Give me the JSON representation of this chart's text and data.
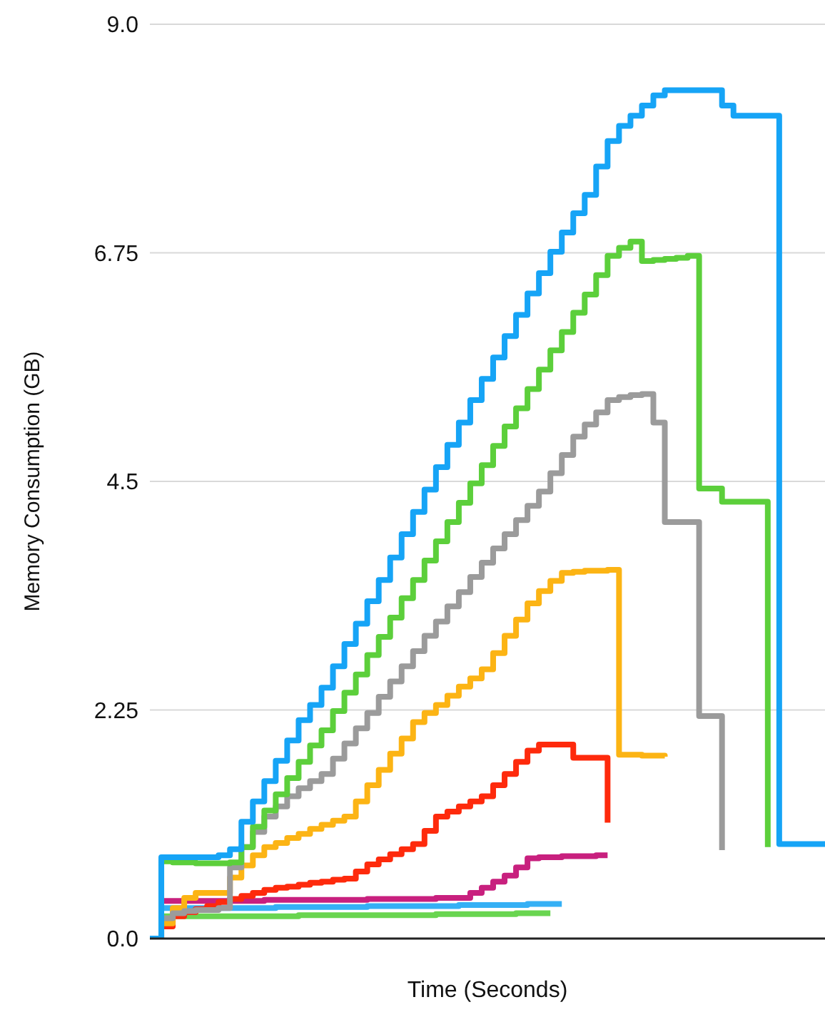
{
  "chart_data": {
    "type": "step",
    "xlabel": "Time (Seconds)",
    "ylabel": "Memory Consumption (GB)",
    "categories": [
      null,
      null,
      null,
      null,
      null,
      null,
      null,
      null,
      null,
      null,
      null,
      null,
      null,
      null,
      null,
      null,
      null,
      null,
      null,
      null,
      null,
      null,
      null,
      null,
      null,
      null,
      null,
      null,
      null,
      null,
      null,
      null,
      null,
      null,
      null,
      null,
      null,
      null,
      null,
      null,
      null,
      null,
      null,
      null,
      null,
      null,
      null,
      null,
      null,
      null,
      null,
      null,
      null,
      null,
      null,
      null,
      null,
      null,
      null,
      null
    ],
    "ylim": [
      0,
      9
    ],
    "yticks": [
      {
        "value": 0,
        "label": "0.0"
      },
      2.25,
      4.5,
      6.75,
      {
        "value": 9,
        "label": "9.0"
      }
    ],
    "grid": "y",
    "marker": "none",
    "line_style": "solid",
    "tick_labels": "y",
    "series": [
      {
        "color": "#69d550",
        "values": [
          null,
          0.22,
          0.22,
          0.22,
          0.22,
          0.22,
          0.22,
          0.22,
          0.22,
          0.22,
          0.22,
          0.22,
          0.22,
          0.23,
          0.23,
          0.23,
          0.23,
          0.23,
          0.23,
          0.23,
          0.23,
          0.23,
          0.23,
          0.23,
          0.23,
          0.24,
          0.24,
          0.24,
          0.24,
          0.24,
          0.24,
          0.24,
          0.25,
          0.25,
          0.25,
          0.25,
          null,
          null,
          null,
          null,
          null,
          null,
          null,
          null,
          null,
          null,
          null,
          null,
          null,
          null,
          null,
          null,
          null,
          null,
          null,
          null,
          null,
          null,
          null,
          null
        ]
      },
      {
        "color": "#35b0f5",
        "values": [
          null,
          0.3,
          0.3,
          0.3,
          0.3,
          0.3,
          0.3,
          0.3,
          0.3,
          0.3,
          0.3,
          0.31,
          0.31,
          0.31,
          0.31,
          0.31,
          0.31,
          0.31,
          0.31,
          0.32,
          0.32,
          0.32,
          0.32,
          0.32,
          0.32,
          0.32,
          0.32,
          0.33,
          0.33,
          0.33,
          0.33,
          0.33,
          0.33,
          0.34,
          0.34,
          0.34,
          0.34,
          null,
          null,
          null,
          null,
          null,
          null,
          null,
          null,
          null,
          null,
          null,
          null,
          null,
          null,
          null,
          null,
          null,
          null,
          null,
          null,
          null,
          null,
          null
        ]
      },
      {
        "color": "#c8207e",
        "values": [
          null,
          0.37,
          0.37,
          0.37,
          0.37,
          0.37,
          0.37,
          0.37,
          0.37,
          0.37,
          0.38,
          0.38,
          0.38,
          0.38,
          0.38,
          0.38,
          0.38,
          0.38,
          0.38,
          0.39,
          0.39,
          0.39,
          0.39,
          0.39,
          0.39,
          0.4,
          0.4,
          0.4,
          0.45,
          0.5,
          0.56,
          0.62,
          0.7,
          0.79,
          0.8,
          0.8,
          0.81,
          0.81,
          0.81,
          0.82,
          0.82,
          null,
          null,
          null,
          null,
          null,
          null,
          null,
          null,
          null,
          null,
          null,
          null,
          null,
          null,
          null,
          null,
          null,
          null,
          null
        ]
      },
      {
        "color": "#fe2a0c",
        "values": [
          0,
          0.12,
          0.22,
          0.26,
          0.29,
          0.32,
          0.36,
          0.39,
          0.42,
          0.45,
          0.48,
          0.5,
          0.51,
          0.53,
          0.55,
          0.56,
          0.58,
          0.59,
          0.66,
          0.73,
          0.78,
          0.83,
          0.88,
          0.93,
          1.06,
          1.2,
          1.25,
          1.3,
          1.35,
          1.4,
          1.51,
          1.62,
          1.74,
          1.85,
          1.91,
          1.91,
          1.91,
          1.78,
          1.78,
          1.78,
          1.14,
          null,
          null,
          null,
          null,
          null,
          null,
          null,
          null,
          null,
          null,
          null,
          null,
          null,
          null,
          null,
          null,
          null,
          null,
          null
        ]
      },
      {
        "color": "#fcb414",
        "values": [
          0,
          0.15,
          0.3,
          0.4,
          0.45,
          0.45,
          0.45,
          0.6,
          0.72,
          0.82,
          0.9,
          0.94,
          0.99,
          1.03,
          1.08,
          1.12,
          1.16,
          1.2,
          1.35,
          1.51,
          1.66,
          1.82,
          1.97,
          2.13,
          2.22,
          2.3,
          2.39,
          2.48,
          2.56,
          2.65,
          2.81,
          2.98,
          3.14,
          3.3,
          3.42,
          3.52,
          3.6,
          3.61,
          3.62,
          3.62,
          3.63,
          1.81,
          1.81,
          1.8,
          1.8,
          1.79,
          null,
          null,
          null,
          null,
          null,
          null,
          null,
          null,
          null,
          null,
          null,
          null,
          null,
          null
        ]
      },
      {
        "color": "#9b9b9b",
        "values": [
          0,
          0.2,
          0.25,
          0.27,
          0.28,
          0.28,
          0.3,
          0.7,
          0.9,
          1.05,
          1.2,
          1.3,
          1.4,
          1.48,
          1.55,
          1.62,
          1.77,
          1.92,
          2.07,
          2.22,
          2.38,
          2.53,
          2.68,
          2.83,
          2.98,
          3.12,
          3.27,
          3.41,
          3.56,
          3.7,
          3.84,
          3.98,
          4.12,
          4.26,
          4.4,
          4.58,
          4.76,
          4.94,
          5.06,
          5.18,
          5.3,
          5.33,
          5.35,
          5.36,
          5.08,
          4.1,
          4.1,
          4.1,
          2.19,
          2.19,
          0.87,
          null,
          null,
          null,
          null,
          null,
          null,
          null,
          null,
          null
        ]
      },
      {
        "color": "#5ccf3b",
        "values": [
          0,
          0.76,
          0.75,
          0.75,
          0.74,
          0.74,
          0.74,
          0.75,
          0.9,
          1.1,
          1.26,
          1.42,
          1.58,
          1.74,
          1.9,
          2.05,
          2.24,
          2.42,
          2.6,
          2.79,
          2.97,
          3.16,
          3.35,
          3.53,
          3.72,
          3.91,
          4.1,
          4.29,
          4.48,
          4.66,
          4.85,
          5.04,
          5.22,
          5.41,
          5.6,
          5.79,
          5.97,
          6.16,
          6.34,
          6.53,
          6.72,
          6.8,
          6.86,
          6.67,
          6.68,
          6.69,
          6.7,
          6.72,
          4.43,
          4.43,
          4.3,
          4.3,
          4.3,
          4.3,
          0.9,
          null,
          null,
          null,
          null,
          null
        ]
      },
      {
        "color": "#16a4f6",
        "values": [
          0,
          0.8,
          0.8,
          0.8,
          0.8,
          0.8,
          0.82,
          0.88,
          1.15,
          1.35,
          1.55,
          1.75,
          1.95,
          2.15,
          2.3,
          2.47,
          2.68,
          2.9,
          3.1,
          3.32,
          3.53,
          3.75,
          3.98,
          4.2,
          4.42,
          4.64,
          4.86,
          5.08,
          5.3,
          5.51,
          5.72,
          5.93,
          6.14,
          6.35,
          6.55,
          6.76,
          6.95,
          7.14,
          7.32,
          7.6,
          7.85,
          8.0,
          8.1,
          8.2,
          8.3,
          8.35,
          8.35,
          8.35,
          8.35,
          8.35,
          8.2,
          8.1,
          8.1,
          8.1,
          8.1,
          0.93,
          0.93,
          0.93,
          0.93,
          0.93
        ]
      }
    ]
  }
}
